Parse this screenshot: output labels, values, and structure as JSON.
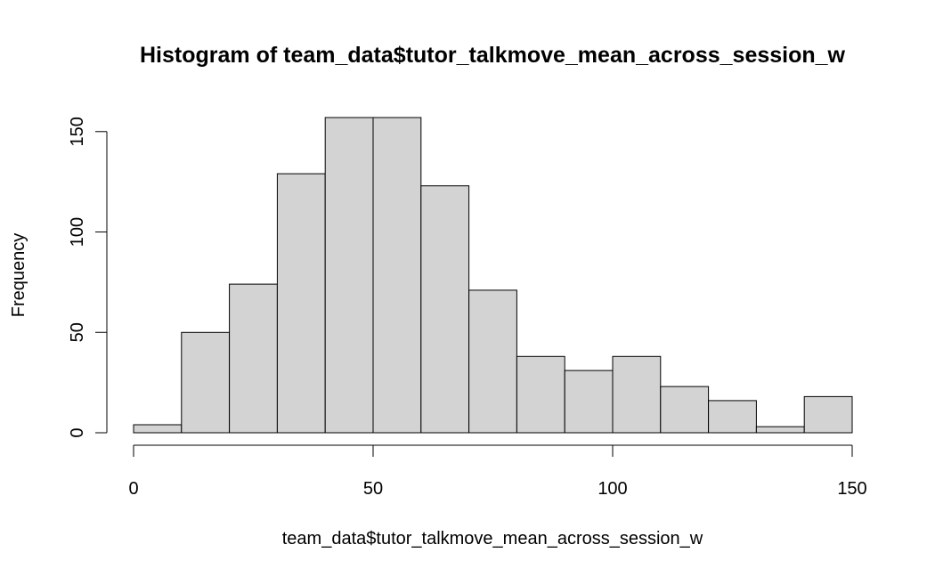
{
  "chart_data": {
    "type": "bar",
    "title": "Histogram of team_data$tutor_talkmove_mean_across_session_w",
    "xlabel": "team_data$tutor_talkmove_mean_across_session_w",
    "ylabel": "Frequency",
    "bin_edges": [
      0,
      10,
      20,
      30,
      40,
      50,
      60,
      70,
      80,
      90,
      100,
      110,
      120,
      130,
      140,
      150
    ],
    "values": [
      4,
      50,
      74,
      129,
      157,
      157,
      123,
      71,
      38,
      31,
      38,
      23,
      16,
      3,
      18
    ],
    "xlim": [
      0,
      150
    ],
    "ylim": [
      0,
      157
    ],
    "x_ticks": [
      "0",
      "50",
      "100",
      "150"
    ],
    "y_ticks": [
      "0",
      "50",
      "100",
      "150"
    ],
    "bar_color": "#d3d3d3",
    "edge_color": "#000000",
    "grid": false
  }
}
